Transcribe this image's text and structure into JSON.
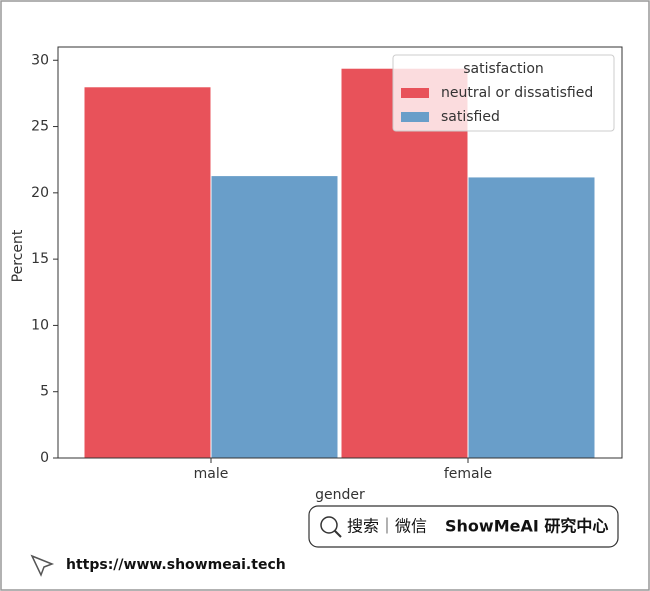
{
  "chart_data": {
    "type": "bar",
    "categories": [
      "male",
      "female"
    ],
    "series": [
      {
        "name": "neutral or dissatisfied",
        "color": "#e8525a",
        "values": [
          28.0,
          29.4
        ]
      },
      {
        "name": "satisfied",
        "color": "#699ec9",
        "values": [
          21.3,
          21.2
        ]
      }
    ],
    "x_label": "gender",
    "y_label": "Percent",
    "legend_title": "satisfaction",
    "legend_position": "upper right",
    "ylim": [
      0,
      31
    ],
    "yticks": [
      0,
      5,
      10,
      15,
      20,
      25,
      30
    ]
  },
  "watermark": {
    "search": "搜索｜微信",
    "brand": "ShowMeAI 研究中心",
    "url": "https://www.showmeai.tech"
  }
}
